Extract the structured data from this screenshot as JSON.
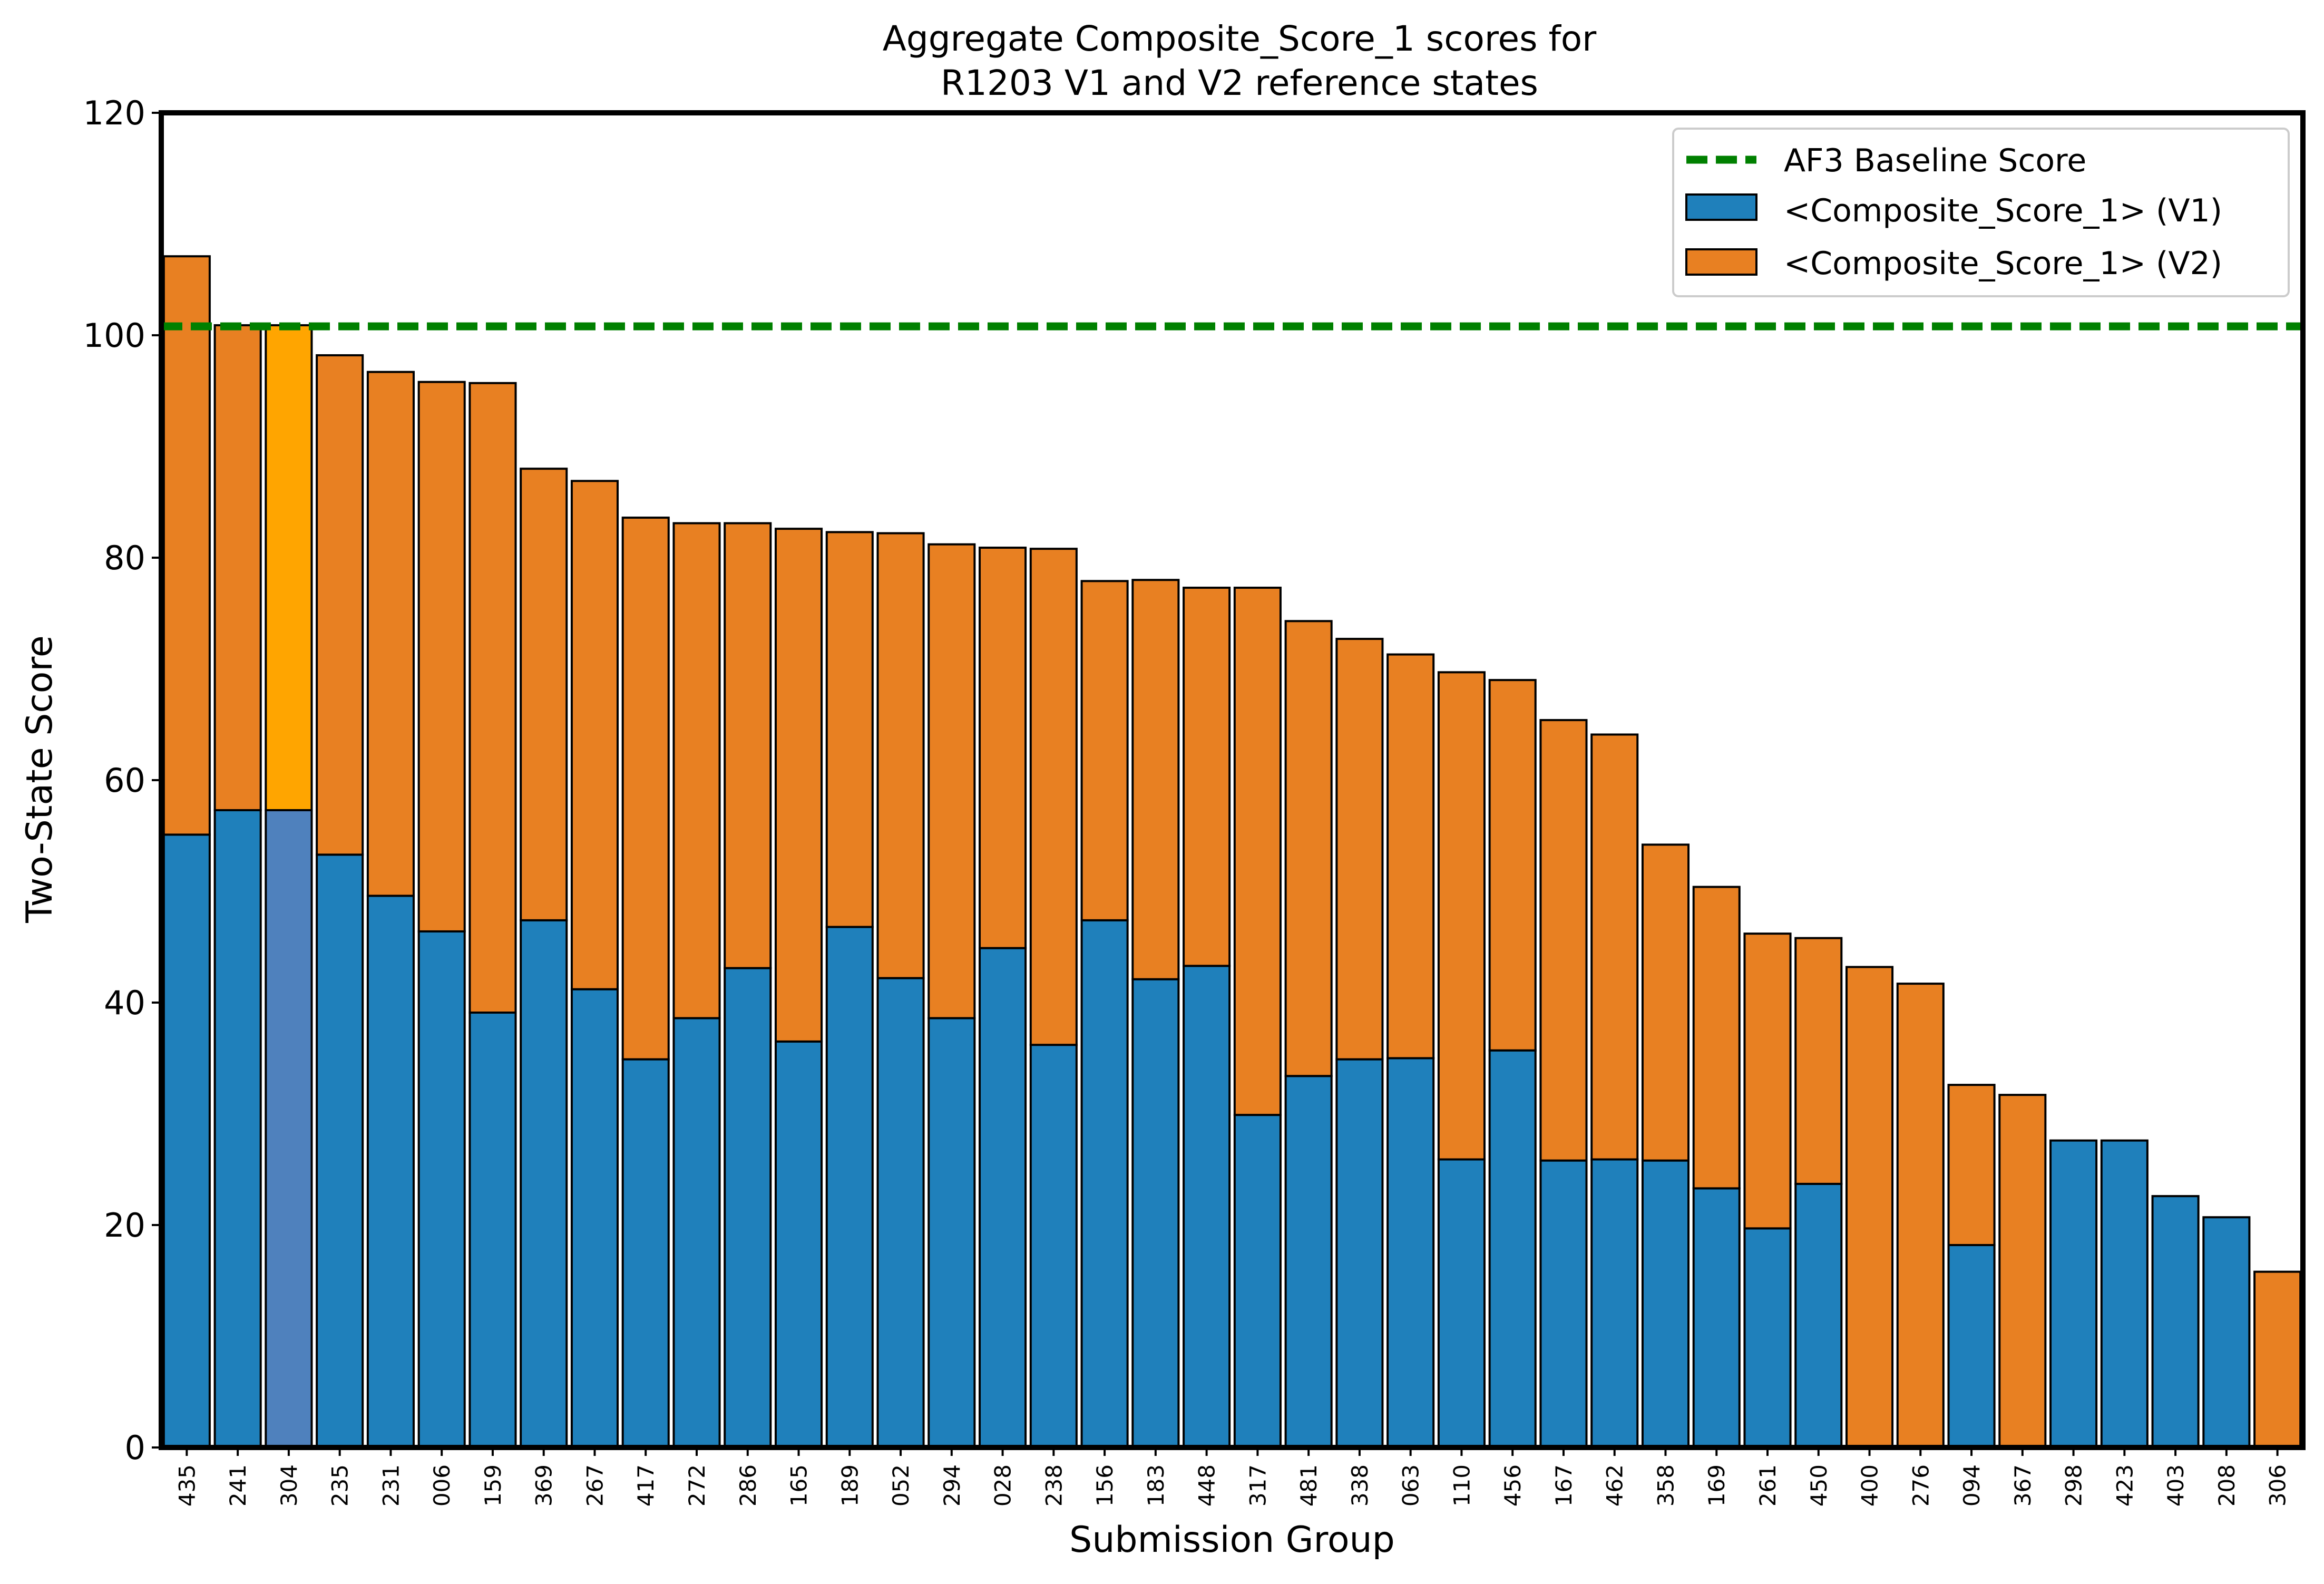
{
  "chart_data": {
    "type": "bar",
    "stacked": true,
    "title_lines": [
      "Aggregate Composite_Score_1 scores for",
      "R1203 V1 and V2 reference states"
    ],
    "xlabel": "Submission Group",
    "ylabel": "Two-State Score",
    "ylim": [
      0,
      120
    ],
    "yticks": [
      0,
      20,
      40,
      60,
      80,
      100,
      120
    ],
    "grid": false,
    "legend_position": "top-right",
    "categories": [
      "435",
      "241",
      "304",
      "235",
      "231",
      "006",
      "159",
      "369",
      "267",
      "417",
      "272",
      "286",
      "165",
      "189",
      "052",
      "294",
      "028",
      "238",
      "156",
      "183",
      "448",
      "317",
      "481",
      "338",
      "063",
      "110",
      "456",
      "167",
      "462",
      "358",
      "169",
      "261",
      "450",
      "400",
      "276",
      "094",
      "367",
      "298",
      "423",
      "403",
      "208",
      "306"
    ],
    "highlight_category": "304",
    "series": [
      {
        "name": "<Composite_Score_1> (V1)",
        "color": "#1f80bb",
        "highlight_color": "#4f81bd",
        "values": [
          55.1,
          57.3,
          57.3,
          53.3,
          49.6,
          46.4,
          39.1,
          47.4,
          41.2,
          34.9,
          38.6,
          43.1,
          36.5,
          46.8,
          42.2,
          38.6,
          44.9,
          36.2,
          47.4,
          42.1,
          43.3,
          29.9,
          33.4,
          34.9,
          35.0,
          25.9,
          35.7,
          25.8,
          25.9,
          25.8,
          23.3,
          19.7,
          23.7,
          0.0,
          0.0,
          18.2,
          0.0,
          27.6,
          27.6,
          22.6,
          20.7,
          0.0
        ]
      },
      {
        "name": "<Composite_Score_1> (V2)",
        "color": "#e88022",
        "highlight_color": "#ffa500",
        "values": [
          52.0,
          43.6,
          43.6,
          44.9,
          47.1,
          49.4,
          56.6,
          40.6,
          45.7,
          48.7,
          44.5,
          40.0,
          46.1,
          35.5,
          40.0,
          42.6,
          36.0,
          44.6,
          30.5,
          35.9,
          34.0,
          47.4,
          40.9,
          37.8,
          36.3,
          43.8,
          33.3,
          39.6,
          38.2,
          28.4,
          27.1,
          26.5,
          22.1,
          43.2,
          41.7,
          14.4,
          31.7,
          0.0,
          0.0,
          0.0,
          0.0,
          15.8
        ]
      }
    ],
    "baseline": {
      "name": "AF3 Baseline Score",
      "value": 100.8,
      "color": "#008000"
    }
  }
}
